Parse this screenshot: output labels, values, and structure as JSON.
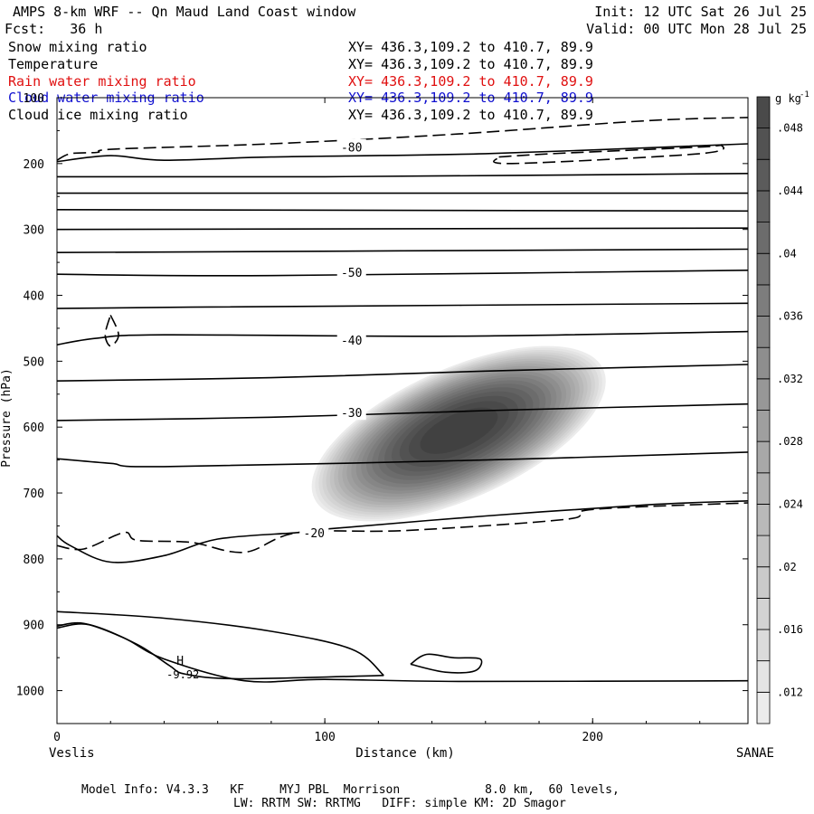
{
  "header": {
    "title": "AMPS 8-km WRF -- Qn Maud Land Coast window",
    "init": "Init: 12 UTC Sat 26 Jul 25",
    "fcst": "Fcst:   36 h",
    "valid": "Valid: 00 UTC Mon 28 Jul 25"
  },
  "fields": [
    {
      "name": "Snow mixing ratio",
      "xy": "XY= 436.3,109.2 to 410.7, 89.9",
      "color": "#000000"
    },
    {
      "name": "Temperature",
      "xy": "XY= 436.3,109.2 to 410.7, 89.9",
      "color": "#000000"
    },
    {
      "name": "Rain water mixing ratio",
      "xy": "XY= 436.3,109.2 to 410.7, 89.9",
      "color": "#e01010"
    },
    {
      "name": "Cloud water mixing ratio",
      "xy": "XY= 436.3,109.2 to 410.7, 89.9",
      "color": "#1010d0"
    },
    {
      "name": "Cloud ice mixing ratio",
      "xy": "XY= 436.3,109.2 to 410.7, 89.9",
      "color": "#000000"
    }
  ],
  "chart_data": {
    "type": "heatmap",
    "xlabel": "Distance (km)",
    "ylabel": "Pressure (hPa)",
    "xlim": [
      0,
      258
    ],
    "ylim": [
      1050,
      100
    ],
    "x_ticks": [
      0,
      100,
      200
    ],
    "y_ticks": [
      100,
      200,
      300,
      400,
      500,
      600,
      700,
      800,
      900,
      1000
    ],
    "x_start_label": "Veslis",
    "x_end_label": "SANAE",
    "colorbar": {
      "unit": "g kg",
      "unit_exp": "-1",
      "ticks": [
        ".012",
        ".016",
        ".02",
        ".024",
        ".028",
        ".032",
        ".036",
        ".04",
        ".044",
        ".048"
      ],
      "levels": [
        0.01,
        0.012,
        0.014,
        0.016,
        0.018,
        0.02,
        0.022,
        0.024,
        0.026,
        0.028,
        0.03,
        0.032,
        0.034,
        0.036,
        0.038,
        0.04,
        0.042,
        0.044,
        0.046,
        0.048,
        0.05
      ],
      "range": [
        0.008,
        0.05
      ]
    },
    "snow_blob": {
      "center_x_km": 150,
      "center_p_hPa": 610,
      "max": 0.05
    },
    "temperature_labels": [
      {
        "text": "-80",
        "x": 110,
        "p": 175
      },
      {
        "text": "-50",
        "x": 110,
        "p": 365
      },
      {
        "text": "-40",
        "x": 110,
        "p": 468
      },
      {
        "text": "-30",
        "x": 110,
        "p": 578
      },
      {
        "text": "-20",
        "x": 96,
        "p": 760
      }
    ],
    "high_marker": {
      "text": "H",
      "value": "-9.92",
      "x": 46,
      "p": 965
    },
    "isotherms": [
      [
        [
          0,
          197
        ],
        [
          20,
          188
        ],
        [
          40,
          195
        ],
        [
          80,
          190
        ],
        [
          160,
          185
        ],
        [
          258,
          170
        ]
      ],
      [
        [
          0,
          220
        ],
        [
          100,
          220
        ],
        [
          258,
          215
        ]
      ],
      [
        [
          0,
          245
        ],
        [
          258,
          245
        ]
      ],
      [
        [
          0,
          270
        ],
        [
          258,
          272
        ]
      ],
      [
        [
          0,
          300
        ],
        [
          258,
          298
        ]
      ],
      [
        [
          0,
          335
        ],
        [
          258,
          330
        ]
      ],
      [
        [
          0,
          368
        ],
        [
          80,
          370
        ],
        [
          258,
          362
        ]
      ],
      [
        [
          0,
          420
        ],
        [
          50,
          418
        ],
        [
          258,
          412
        ]
      ],
      [
        [
          0,
          475
        ],
        [
          15,
          465
        ],
        [
          40,
          460
        ],
        [
          150,
          462
        ],
        [
          258,
          455
        ]
      ],
      [
        [
          0,
          530
        ],
        [
          80,
          525
        ],
        [
          160,
          515
        ],
        [
          258,
          505
        ]
      ],
      [
        [
          0,
          590
        ],
        [
          80,
          585
        ],
        [
          160,
          575
        ],
        [
          258,
          565
        ]
      ],
      [
        [
          0,
          648
        ],
        [
          20,
          655
        ],
        [
          40,
          660
        ],
        [
          160,
          650
        ],
        [
          258,
          638
        ]
      ],
      [
        [
          0,
          765
        ],
        [
          5,
          780
        ],
        [
          20,
          805
        ],
        [
          40,
          795
        ],
        [
          60,
          770
        ],
        [
          90,
          760
        ],
        [
          100,
          755
        ],
        [
          160,
          735
        ],
        [
          220,
          718
        ],
        [
          258,
          712
        ]
      ],
      [
        [
          0,
          880
        ],
        [
          40,
          890
        ],
        [
          80,
          910
        ],
        [
          110,
          937
        ],
        [
          122,
          977
        ]
      ],
      [
        [
          0,
          902
        ],
        [
          10,
          898
        ],
        [
          25,
          920
        ],
        [
          40,
          952
        ],
        [
          70,
          985
        ],
        [
          100,
          983
        ],
        [
          150,
          986
        ],
        [
          258,
          985
        ]
      ],
      [
        [
          0,
          905
        ],
        [
          12,
          900
        ],
        [
          30,
          930
        ],
        [
          42,
          962
        ],
        [
          48,
          975
        ],
        [
          68,
          982
        ],
        [
          122,
          977
        ]
      ]
    ],
    "closed_isotherm": [
      [
        132,
        960
      ],
      [
        138,
        945
      ],
      [
        148,
        950
      ],
      [
        158,
        952
      ],
      [
        156,
        970
      ],
      [
        145,
        972
      ],
      [
        132,
        960
      ]
    ],
    "dashed_contours": [
      [
        [
          0,
          195
        ],
        [
          5,
          185
        ],
        [
          15,
          183
        ],
        [
          22,
          178
        ],
        [
          80,
          170
        ],
        [
          150,
          155
        ],
        [
          220,
          135
        ],
        [
          258,
          130
        ]
      ],
      [
        [
          165,
          190
        ],
        [
          185,
          185
        ],
        [
          240,
          175
        ],
        [
          248,
          172
        ],
        [
          240,
          185
        ],
        [
          170,
          200
        ],
        [
          165,
          190
        ]
      ],
      [
        [
          20,
          430
        ],
        [
          23,
          460
        ],
        [
          20,
          477
        ],
        [
          18,
          460
        ],
        [
          20,
          430
        ]
      ],
      [
        [
          0,
          780
        ],
        [
          10,
          785
        ],
        [
          25,
          760
        ],
        [
          30,
          772
        ],
        [
          50,
          775
        ],
        [
          70,
          790
        ],
        [
          90,
          760
        ],
        [
          130,
          757
        ],
        [
          190,
          740
        ],
        [
          200,
          725
        ],
        [
          258,
          715
        ]
      ]
    ]
  },
  "footer": {
    "line1": "Model Info: V4.3.3   KF     MYJ PBL  Morrison            8.0 km,  60 levels,",
    "line2": "LW: RRTM SW: RRTMG   DIFF: simple KM: 2D Smagor"
  }
}
